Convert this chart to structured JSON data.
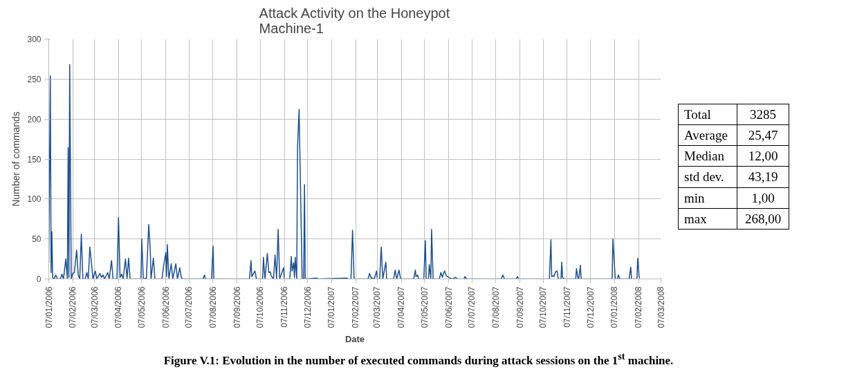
{
  "chart_data": {
    "type": "line",
    "title": "Attack Activity on the Honeypot\nMachine-1",
    "xlabel": "Date",
    "ylabel": "Number of commands",
    "x": [
      "2006-01-07",
      "2006-01-09",
      "2006-01-10",
      "2006-01-11",
      "2006-01-12",
      "2006-01-14",
      "2006-01-16",
      "2006-01-18",
      "2006-01-22",
      "2006-01-24",
      "2006-01-26",
      "2006-01-29",
      "2006-01-31",
      "2006-02-01",
      "2006-02-02",
      "2006-02-03",
      "2006-02-05",
      "2006-02-07",
      "2006-02-09",
      "2006-02-12",
      "2006-02-14",
      "2006-02-16",
      "2006-02-18",
      "2006-02-20",
      "2006-02-23",
      "2006-02-25",
      "2006-02-27",
      "2006-03-01",
      "2006-03-03",
      "2006-03-05",
      "2006-03-08",
      "2006-03-10",
      "2006-03-14",
      "2006-03-16",
      "2006-03-18",
      "2006-03-20",
      "2006-03-24",
      "2006-03-26",
      "2006-03-29",
      "2006-03-31",
      "2006-04-05",
      "2006-04-07",
      "2006-04-09",
      "2006-04-11",
      "2006-04-13",
      "2006-04-16",
      "2006-04-18",
      "2006-04-20",
      "2006-04-22",
      "2006-05-06",
      "2006-05-07",
      "2006-05-09",
      "2006-05-13",
      "2006-05-16",
      "2006-05-18",
      "2006-05-19",
      "2006-05-22",
      "2006-05-24",
      "2006-06-02",
      "2006-06-04",
      "2006-06-07",
      "2006-06-08",
      "2006-06-09",
      "2006-06-11",
      "2006-06-14",
      "2006-06-16",
      "2006-06-20",
      "2006-06-22",
      "2006-06-25",
      "2006-06-27",
      "2006-06-29",
      "2006-07-25",
      "2006-07-27",
      "2006-07-28",
      "2006-08-05",
      "2006-08-07",
      "2006-08-08",
      "2006-09-23",
      "2006-09-25",
      "2006-09-26",
      "2006-09-30",
      "2006-10-02",
      "2006-10-10",
      "2006-10-11",
      "2006-10-13",
      "2006-10-16",
      "2006-10-18",
      "2006-10-20",
      "2006-10-21",
      "2006-10-24",
      "2006-10-26",
      "2006-10-28",
      "2006-10-30",
      "2006-11-01",
      "2006-11-06",
      "2006-11-07",
      "2006-11-14",
      "2006-11-16",
      "2006-11-17",
      "2006-11-19",
      "2006-11-20",
      "2006-11-21",
      "2006-11-23",
      "2006-11-24",
      "2006-11-26",
      "2006-11-30",
      "2006-12-02",
      "2006-12-03",
      "2006-12-04",
      "2006-12-19",
      "2006-12-21",
      "2007-01-27",
      "2007-01-28",
      "2007-02-01",
      "2007-02-03",
      "2007-02-05",
      "2007-02-23",
      "2007-02-25",
      "2007-02-27",
      "2007-03-01",
      "2007-03-03",
      "2007-03-06",
      "2007-03-07",
      "2007-03-10",
      "2007-03-12",
      "2007-03-14",
      "2007-03-18",
      "2007-03-19",
      "2007-03-28",
      "2007-03-30",
      "2007-04-01",
      "2007-04-04",
      "2007-04-06",
      "2007-04-23",
      "2007-04-25",
      "2007-04-26",
      "2007-04-28",
      "2007-04-29",
      "2007-05-06",
      "2007-05-08",
      "2007-05-09",
      "2007-05-12",
      "2007-05-13",
      "2007-05-15",
      "2007-05-16",
      "2007-05-18",
      "2007-05-26",
      "2007-05-28",
      "2007-05-30",
      "2007-05-31",
      "2007-06-02",
      "2007-06-04",
      "2007-06-07",
      "2007-06-09",
      "2007-06-12",
      "2007-06-16",
      "2007-06-18",
      "2007-06-27",
      "2007-06-28",
      "2007-06-30",
      "2007-08-14",
      "2007-08-16",
      "2007-08-18",
      "2007-09-02",
      "2007-09-04",
      "2007-09-05",
      "2007-10-15",
      "2007-10-17",
      "2007-10-18",
      "2007-10-20",
      "2007-10-21",
      "2007-10-23",
      "2007-10-25",
      "2007-10-26",
      "2007-10-27",
      "2007-10-30",
      "2007-10-31",
      "2007-11-01",
      "2007-11-03",
      "2007-11-18",
      "2007-11-19",
      "2007-11-21",
      "2007-11-22",
      "2007-11-24",
      "2007-11-25",
      "2008-01-04",
      "2008-01-05",
      "2008-01-08",
      "2008-01-11",
      "2008-01-12",
      "2008-01-14",
      "2008-01-26",
      "2008-01-28",
      "2008-01-29",
      "2008-02-05",
      "2008-02-06",
      "2008-02-08"
    ],
    "series": [
      {
        "color": "#1c4f8f",
        "values": [
          20,
          254,
          8,
          59,
          2,
          0,
          5,
          0,
          0,
          6,
          0,
          25,
          0,
          164,
          2,
          268,
          0,
          7,
          8,
          36,
          5,
          0,
          56,
          0,
          0,
          8,
          0,
          40,
          21,
          0,
          10,
          0,
          7,
          2,
          5,
          0,
          8,
          0,
          23,
          0,
          0,
          77,
          2,
          6,
          0,
          25,
          0,
          26,
          0,
          0,
          50,
          0,
          1,
          68,
          36,
          0,
          26,
          0,
          0,
          15,
          33,
          3,
          43,
          0,
          19,
          0,
          19,
          0,
          14,
          2,
          0,
          0,
          5,
          0,
          0,
          41,
          0,
          0,
          23,
          3,
          10,
          0,
          0,
          27,
          0,
          32,
          8,
          9,
          4,
          0,
          30,
          0,
          62,
          0,
          14,
          0,
          0,
          28,
          10,
          20,
          2,
          27,
          0,
          164,
          212,
          0,
          0,
          118,
          0,
          1,
          0,
          1,
          0,
          0,
          61,
          0,
          0,
          7,
          1,
          1,
          0,
          10,
          0,
          0,
          40,
          0,
          21,
          0,
          0,
          11,
          0,
          11,
          0,
          0,
          11,
          3,
          5,
          0,
          0,
          48,
          0,
          0,
          18,
          0,
          62,
          0,
          0,
          8,
          2,
          6,
          10,
          4,
          2,
          1,
          0,
          2,
          0,
          0,
          3,
          0,
          0,
          5,
          0,
          0,
          3,
          0,
          0,
          49,
          3,
          4,
          3,
          9,
          10,
          2,
          0,
          0,
          21,
          2,
          0,
          0,
          13,
          0,
          0,
          17,
          0,
          0,
          50,
          0,
          0,
          5,
          0,
          0,
          15,
          0,
          0,
          26,
          0
        ]
      }
    ],
    "xlim": [
      "2006-01-07",
      "2008-03-07"
    ],
    "xticks": [
      {
        "value": "2006-01-07",
        "label": "07/01/2006"
      },
      {
        "value": "2006-02-07",
        "label": "07/02/2006"
      },
      {
        "value": "2006-03-07",
        "label": "07/03/2006"
      },
      {
        "value": "2006-04-07",
        "label": "07/04/2006"
      },
      {
        "value": "2006-05-07",
        "label": "07/05/2006"
      },
      {
        "value": "2006-06-07",
        "label": "07/06/2006"
      },
      {
        "value": "2006-07-07",
        "label": "07/07/2006"
      },
      {
        "value": "2006-08-07",
        "label": "07/08/2006"
      },
      {
        "value": "2006-09-07",
        "label": "07/09/2006"
      },
      {
        "value": "2006-10-07",
        "label": "07/10/2006"
      },
      {
        "value": "2006-11-07",
        "label": "07/11/2006"
      },
      {
        "value": "2006-12-07",
        "label": "07/12/2006"
      },
      {
        "value": "2007-01-07",
        "label": "07/01/2007"
      },
      {
        "value": "2007-02-07",
        "label": "07/02/2007"
      },
      {
        "value": "2007-03-07",
        "label": "07/03/2007"
      },
      {
        "value": "2007-04-07",
        "label": "07/04/2007"
      },
      {
        "value": "2007-05-07",
        "label": "07/05/2007"
      },
      {
        "value": "2007-06-07",
        "label": "07/06/2007"
      },
      {
        "value": "2007-07-07",
        "label": "07/07/2007"
      },
      {
        "value": "2007-08-07",
        "label": "07/08/2007"
      },
      {
        "value": "2007-09-07",
        "label": "07/09/2007"
      },
      {
        "value": "2007-10-07",
        "label": "07/10/2007"
      },
      {
        "value": "2007-11-07",
        "label": "07/11/2007"
      },
      {
        "value": "2007-12-07",
        "label": "07/12/2007"
      },
      {
        "value": "2008-01-07",
        "label": "07/01/2008"
      },
      {
        "value": "2008-02-07",
        "label": "07/02/2008"
      },
      {
        "value": "2008-03-07",
        "label": "07/03/2008"
      }
    ],
    "ylim": [
      0,
      300
    ],
    "yticks": [
      0,
      50,
      100,
      150,
      200,
      250,
      300
    ],
    "grid": true,
    "line_style": "solid",
    "annotations": [
      "Total 3285",
      "Average 25,47",
      "Median 12,00",
      "std dev. 43,19",
      "min 1,00",
      "max 268,00",
      "Figure V.1: Evolution in the number of executed commands during attack sessions on the 1$^{st}$ machine."
    ]
  }
}
